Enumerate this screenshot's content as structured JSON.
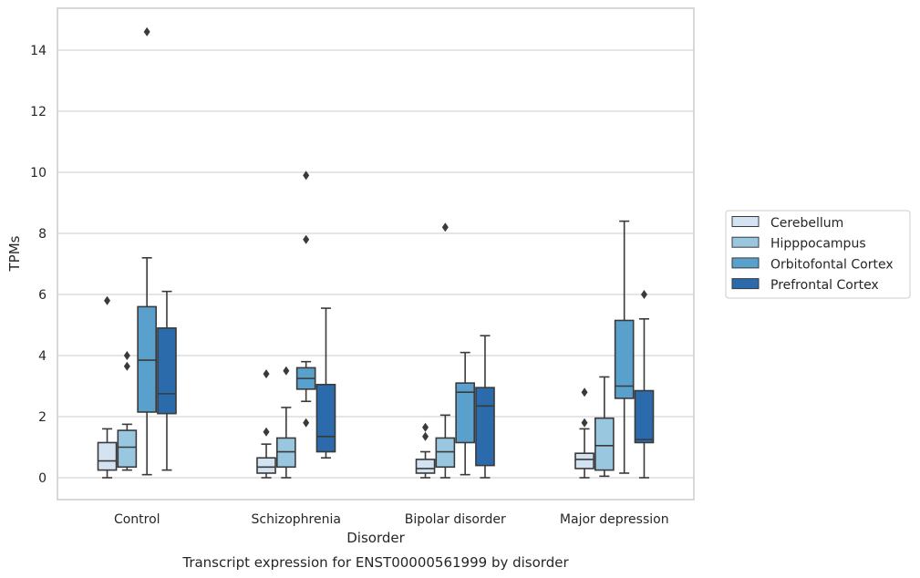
{
  "chart_data": {
    "type": "box",
    "caption": "Transcript expression for ENST00000561999 by disorder",
    "xlabel": "Disorder",
    "ylabel": "TPMs",
    "ylim": [
      -0.7,
      15.4
    ],
    "yticks": [
      0,
      2,
      4,
      6,
      8,
      10,
      12,
      14
    ],
    "grid": "horizontal",
    "legend_position": "right",
    "categories": [
      "Control",
      "Schizophrenia",
      "Bipolar disorder",
      "Major depression"
    ],
    "series": [
      {
        "name": "Cerebellum",
        "color": "#d4e3f1",
        "boxes": [
          {
            "whisker_low": 0.0,
            "q1": 0.25,
            "median": 0.55,
            "q3": 1.15,
            "whisker_high": 1.6,
            "outliers": [
              5.8
            ]
          },
          {
            "whisker_low": 0.0,
            "q1": 0.15,
            "median": 0.35,
            "q3": 0.65,
            "whisker_high": 1.1,
            "outliers": [
              1.5,
              3.4
            ]
          },
          {
            "whisker_low": 0.0,
            "q1": 0.15,
            "median": 0.3,
            "q3": 0.6,
            "whisker_high": 0.85,
            "outliers": [
              1.35,
              1.65
            ]
          },
          {
            "whisker_low": 0.0,
            "q1": 0.3,
            "median": 0.6,
            "q3": 0.8,
            "whisker_high": 1.6,
            "outliers": [
              1.8,
              2.8
            ]
          }
        ]
      },
      {
        "name": "Hipppocampus",
        "color": "#9ac7e0",
        "boxes": [
          {
            "whisker_low": 0.25,
            "q1": 0.35,
            "median": 1.0,
            "q3": 1.55,
            "whisker_high": 1.75,
            "outliers": [
              3.65,
              4.0
            ]
          },
          {
            "whisker_low": 0.0,
            "q1": 0.35,
            "median": 0.85,
            "q3": 1.3,
            "whisker_high": 2.3,
            "outliers": [
              3.5
            ]
          },
          {
            "whisker_low": 0.0,
            "q1": 0.35,
            "median": 0.85,
            "q3": 1.3,
            "whisker_high": 2.05,
            "outliers": [
              8.2
            ]
          },
          {
            "whisker_low": 0.05,
            "q1": 0.25,
            "median": 1.05,
            "q3": 1.95,
            "whisker_high": 3.3,
            "outliers": []
          }
        ]
      },
      {
        "name": "Orbitofontal Cortex",
        "color": "#5aa0cd",
        "boxes": [
          {
            "whisker_low": 0.1,
            "q1": 2.15,
            "median": 3.85,
            "q3": 5.6,
            "whisker_high": 7.2,
            "outliers": [
              14.6
            ]
          },
          {
            "whisker_low": 2.5,
            "q1": 2.9,
            "median": 3.25,
            "q3": 3.6,
            "whisker_high": 3.8,
            "outliers": [
              1.8,
              7.8,
              9.9
            ]
          },
          {
            "whisker_low": 0.1,
            "q1": 1.15,
            "median": 2.8,
            "q3": 3.1,
            "whisker_high": 4.1,
            "outliers": []
          },
          {
            "whisker_low": 0.15,
            "q1": 2.6,
            "median": 3.0,
            "q3": 5.15,
            "whisker_high": 8.4,
            "outliers": []
          }
        ]
      },
      {
        "name": "Prefrontal Cortex",
        "color": "#2b6bab",
        "boxes": [
          {
            "whisker_low": 0.25,
            "q1": 2.1,
            "median": 2.75,
            "q3": 4.9,
            "whisker_high": 6.1,
            "outliers": []
          },
          {
            "whisker_low": 0.65,
            "q1": 0.85,
            "median": 1.35,
            "q3": 3.05,
            "whisker_high": 5.55,
            "outliers": []
          },
          {
            "whisker_low": 0.0,
            "q1": 0.4,
            "median": 2.35,
            "q3": 2.95,
            "whisker_high": 4.65,
            "outliers": []
          },
          {
            "whisker_low": 0.0,
            "q1": 1.15,
            "median": 1.25,
            "q3": 2.85,
            "whisker_high": 5.2,
            "outliers": [
              6.0
            ]
          }
        ]
      }
    ]
  }
}
